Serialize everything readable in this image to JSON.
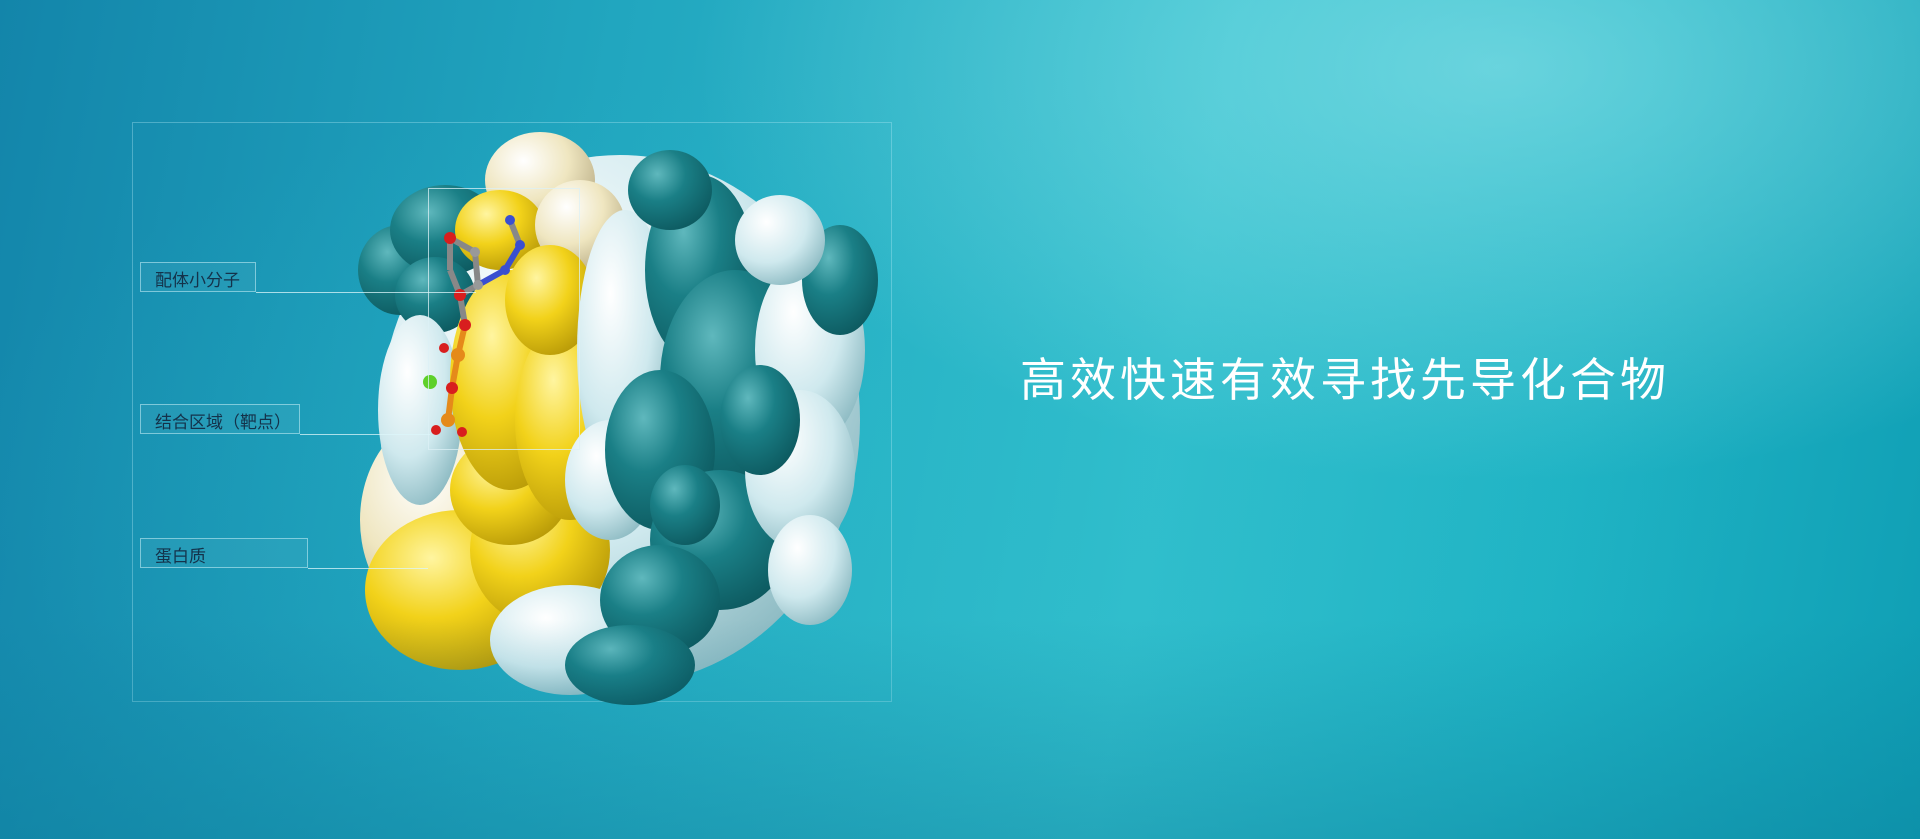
{
  "headline": "高效快速有效寻找先导化合物",
  "labels": {
    "ligand": "配体小分子",
    "binding_site": "结合区域（靶点）",
    "protein": "蛋白质"
  },
  "colors": {
    "teal": "#1a7f86",
    "pale_cyan": "#cfe9ee",
    "yellow": "#f2d21a",
    "cream": "#efe6c0"
  }
}
